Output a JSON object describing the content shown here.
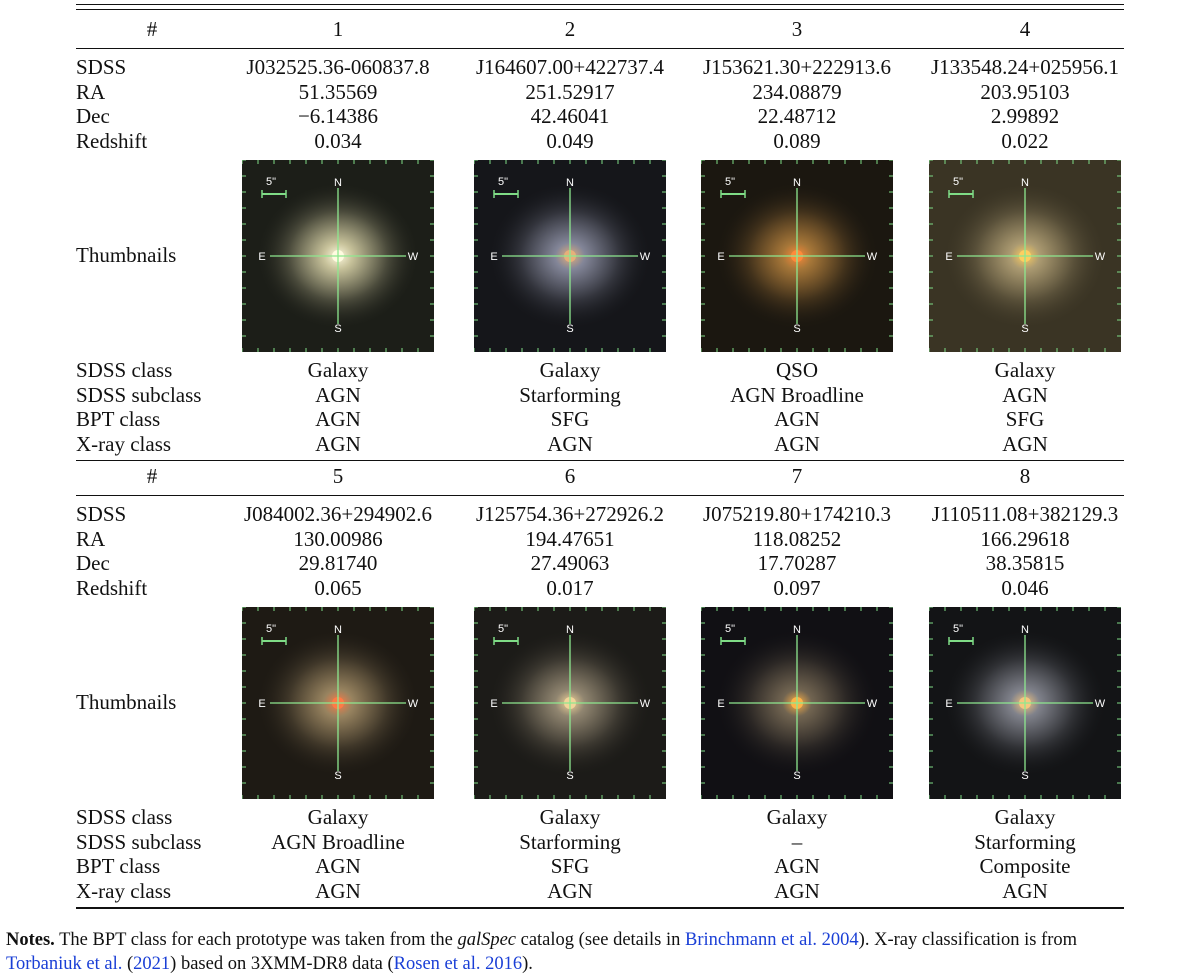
{
  "header_label": "#",
  "row_labels": {
    "sdss": "SDSS",
    "ra": "RA",
    "dec": "Dec",
    "redshift": "Redshift",
    "thumbnails": "Thumbnails",
    "sdss_class": "SDSS class",
    "sdss_subclass": "SDSS subclass",
    "bpt_class": "BPT class",
    "xray_class": "X-ray class"
  },
  "thumbnail_overlay": {
    "scale": "5\"",
    "north": "N",
    "south": "S",
    "east": "E",
    "west": "W"
  },
  "blocks": [
    {
      "objects": [
        {
          "num": "1",
          "sdss": "J032525.36-060837.8",
          "ra": "51.35569",
          "dec": "−6.14386",
          "redshift": "0.034",
          "sdss_class": "Galaxy",
          "sdss_subclass": "AGN",
          "bpt_class": "AGN",
          "xray_class": "AGN",
          "bg": "#1c1e18",
          "glow": "#d9d3a8",
          "core": "#fffbe0"
        },
        {
          "num": "2",
          "sdss": "J164607.00+422737.4",
          "ra": "251.52917",
          "dec": "42.46041",
          "redshift": "0.049",
          "sdss_class": "Galaxy",
          "sdss_subclass": "Starforming",
          "bpt_class": "SFG",
          "xray_class": "AGN",
          "bg": "#15161a",
          "glow": "#8f92a6",
          "core": "#e7b07a"
        },
        {
          "num": "3",
          "sdss": "J153621.30+222913.6",
          "ra": "234.08879",
          "dec": "22.48712",
          "redshift": "0.089",
          "sdss_class": "QSO",
          "sdss_subclass": "AGN Broadline",
          "bpt_class": "AGN",
          "xray_class": "AGN",
          "bg": "#1b1710",
          "glow": "#b5813d",
          "core": "#ff8a3a"
        },
        {
          "num": "4",
          "sdss": "J133548.24+025956.1",
          "ra": "203.95103",
          "dec": "2.99892",
          "redshift": "0.022",
          "sdss_class": "Galaxy",
          "sdss_subclass": "AGN",
          "bpt_class": "SFG",
          "xray_class": "AGN",
          "bg": "#3a3424",
          "glow": "#b8a67a",
          "core": "#ffcf60"
        }
      ]
    },
    {
      "objects": [
        {
          "num": "5",
          "sdss": "J084002.36+294902.6",
          "ra": "130.00986",
          "dec": "29.81740",
          "redshift": "0.065",
          "sdss_class": "Galaxy",
          "sdss_subclass": "AGN Broadline",
          "bpt_class": "AGN",
          "xray_class": "AGN",
          "bg": "#1e1a14",
          "glow": "#a58f68",
          "core": "#ff7a45"
        },
        {
          "num": "6",
          "sdss": "J125754.36+272926.2",
          "ra": "194.47651",
          "dec": "27.49063",
          "redshift": "0.017",
          "sdss_class": "Galaxy",
          "sdss_subclass": "Starforming",
          "bpt_class": "SFG",
          "xray_class": "AGN",
          "bg": "#1c1b18",
          "glow": "#9d917a",
          "core": "#f2d59a"
        },
        {
          "num": "7",
          "sdss": "J075219.80+174210.3",
          "ra": "118.08252",
          "dec": "17.70287",
          "redshift": "0.097",
          "sdss_class": "Galaxy",
          "sdss_subclass": "–",
          "bpt_class": "AGN",
          "xray_class": "AGN",
          "bg": "#111014",
          "glow": "#7c6e58",
          "core": "#ffb347"
        },
        {
          "num": "8",
          "sdss": "J110511.08+382129.3",
          "ra": "166.29618",
          "dec": "38.35815",
          "redshift": "0.046",
          "sdss_class": "Galaxy",
          "sdss_subclass": "Starforming",
          "bpt_class": "Composite",
          "xray_class": "AGN",
          "bg": "#131416",
          "glow": "#8c8e98",
          "core": "#f7c77e"
        }
      ]
    }
  ],
  "notes": {
    "heading": "Notes.",
    "text_1": " The BPT class for each prototype was taken from the ",
    "catalog": "galSpec",
    "text_2": " catalog (see details in ",
    "ref_1": "Brinchmann et al. 2004",
    "text_3": "). X-ray classification is from",
    "ref_2a": "Torbaniuk et al.",
    "text_4": " (",
    "ref_2b": "2021",
    "text_5": ") based on 3XMM-DR8 data (",
    "ref_3": "Rosen et al. 2016",
    "text_6": ")."
  }
}
